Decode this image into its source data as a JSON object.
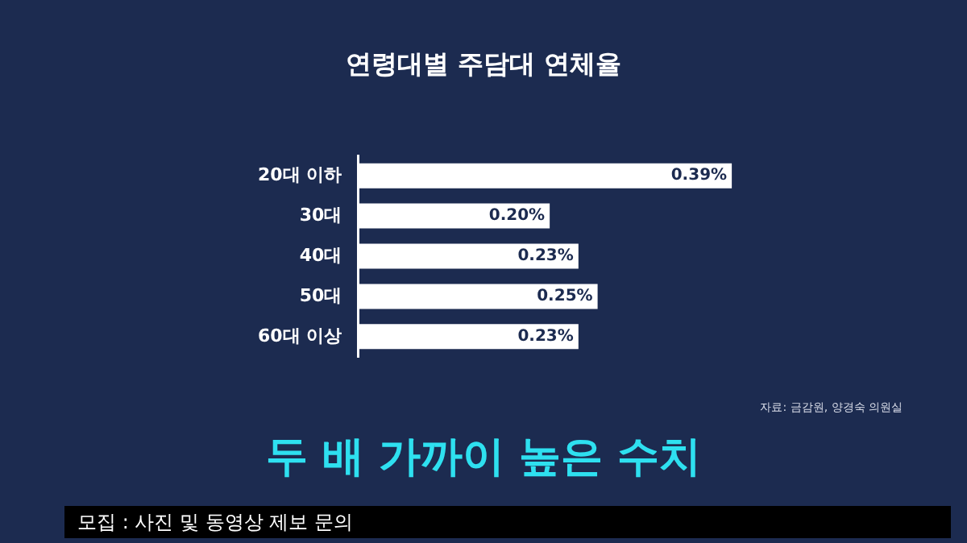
{
  "chart_data": {
    "type": "bar",
    "orientation": "horizontal",
    "title": "연령대별 주담대 연체율",
    "categories": [
      "20대 이하",
      "30대",
      "40대",
      "50대",
      "60대 이상"
    ],
    "values": [
      0.39,
      0.2,
      0.23,
      0.25,
      0.23
    ],
    "value_labels": [
      "0.39%",
      "0.20%",
      "0.23%",
      "0.25%",
      "0.23%"
    ],
    "color": "#ffffff",
    "legend": false,
    "tick_labels": "y",
    "annotations": [
      "자료: 금감원, 양경숙 의원실",
      "두 배 가까이 높은 수치",
      "모집 : 사진 및 동영상 제보 문의"
    ]
  }
}
